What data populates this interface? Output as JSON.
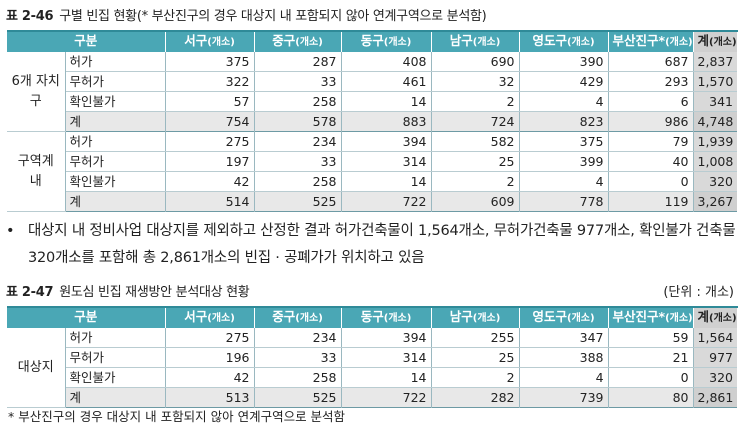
{
  "table1": {
    "caption_no": "표 2-46",
    "caption": "구별 빈집 현황(* 부산진구의 경우 대상지 내 포함되지 않아 연계구역으로 분석함)",
    "headers": [
      {
        "main": "구분",
        "sub": ""
      },
      {
        "main": "서구",
        "sub": "(개소)"
      },
      {
        "main": "중구",
        "sub": "(개소)"
      },
      {
        "main": "동구",
        "sub": "(개소)"
      },
      {
        "main": "남구",
        "sub": "(개소)"
      },
      {
        "main": "영도구",
        "sub": "(개소)"
      },
      {
        "main": "부산진구*",
        "sub": "(개소)"
      },
      {
        "main": "계",
        "sub": "(개소)"
      }
    ],
    "groups": [
      {
        "name": "6개 자치구",
        "rows": [
          {
            "label": "허가",
            "values": [
              "375",
              "287",
              "408",
              "690",
              "390",
              "687"
            ],
            "total": "2,837"
          },
          {
            "label": "무허가",
            "values": [
              "322",
              "33",
              "461",
              "32",
              "429",
              "293"
            ],
            "total": "1,570"
          },
          {
            "label": "확인불가",
            "values": [
              "57",
              "258",
              "14",
              "2",
              "4",
              "6"
            ],
            "total": "341"
          },
          {
            "label": "계",
            "values": [
              "754",
              "578",
              "883",
              "724",
              "823",
              "986"
            ],
            "total": "4,748"
          }
        ]
      },
      {
        "name": "구역계 내",
        "rows": [
          {
            "label": "허가",
            "values": [
              "275",
              "234",
              "394",
              "582",
              "375",
              "79"
            ],
            "total": "1,939"
          },
          {
            "label": "무허가",
            "values": [
              "197",
              "33",
              "314",
              "25",
              "399",
              "40"
            ],
            "total": "1,008"
          },
          {
            "label": "확인불가",
            "values": [
              "42",
              "258",
              "14",
              "2",
              "4",
              "0"
            ],
            "total": "320"
          },
          {
            "label": "계",
            "values": [
              "514",
              "525",
              "722",
              "609",
              "778",
              "119"
            ],
            "total": "3,267"
          }
        ]
      }
    ]
  },
  "bullet": {
    "symbol": "•",
    "text": "대상지 내 정비사업 대상지를 제외하고 산정한 결과 허가건축물이 1,564개소, 무허가건축물 977개소, 확인불가 건축물 320개소를 포함해 총 2,861개소의 빈집 · 공폐가가 위치하고 있음"
  },
  "table2": {
    "caption_no": "표 2-47",
    "caption": "원도심 빈집 재생방안 분석대상 현황",
    "unit": "(단위 : 개소)",
    "headers": [
      {
        "main": "구분",
        "sub": ""
      },
      {
        "main": "서구",
        "sub": "(개소)"
      },
      {
        "main": "중구",
        "sub": "(개소)"
      },
      {
        "main": "동구",
        "sub": "(개소)"
      },
      {
        "main": "남구",
        "sub": "(개소)"
      },
      {
        "main": "영도구",
        "sub": "(개소)"
      },
      {
        "main": "부산진구*",
        "sub": "(개소)"
      },
      {
        "main": "계",
        "sub": "(개소)"
      }
    ],
    "groups": [
      {
        "name": "대상지",
        "rows": [
          {
            "label": "허가",
            "values": [
              "275",
              "234",
              "394",
              "255",
              "347",
              "59"
            ],
            "total": "1,564"
          },
          {
            "label": "무허가",
            "values": [
              "196",
              "33",
              "314",
              "25",
              "388",
              "21"
            ],
            "total": "977"
          },
          {
            "label": "확인불가",
            "values": [
              "42",
              "258",
              "14",
              "2",
              "4",
              "0"
            ],
            "total": "320"
          },
          {
            "label": "계",
            "values": [
              "513",
              "525",
              "722",
              "282",
              "739",
              "80"
            ],
            "total": "2,861"
          }
        ]
      }
    ]
  },
  "footnote": "* 부산진구의 경우 대상지 내 포함되지 않아 연계구역으로 분석함"
}
